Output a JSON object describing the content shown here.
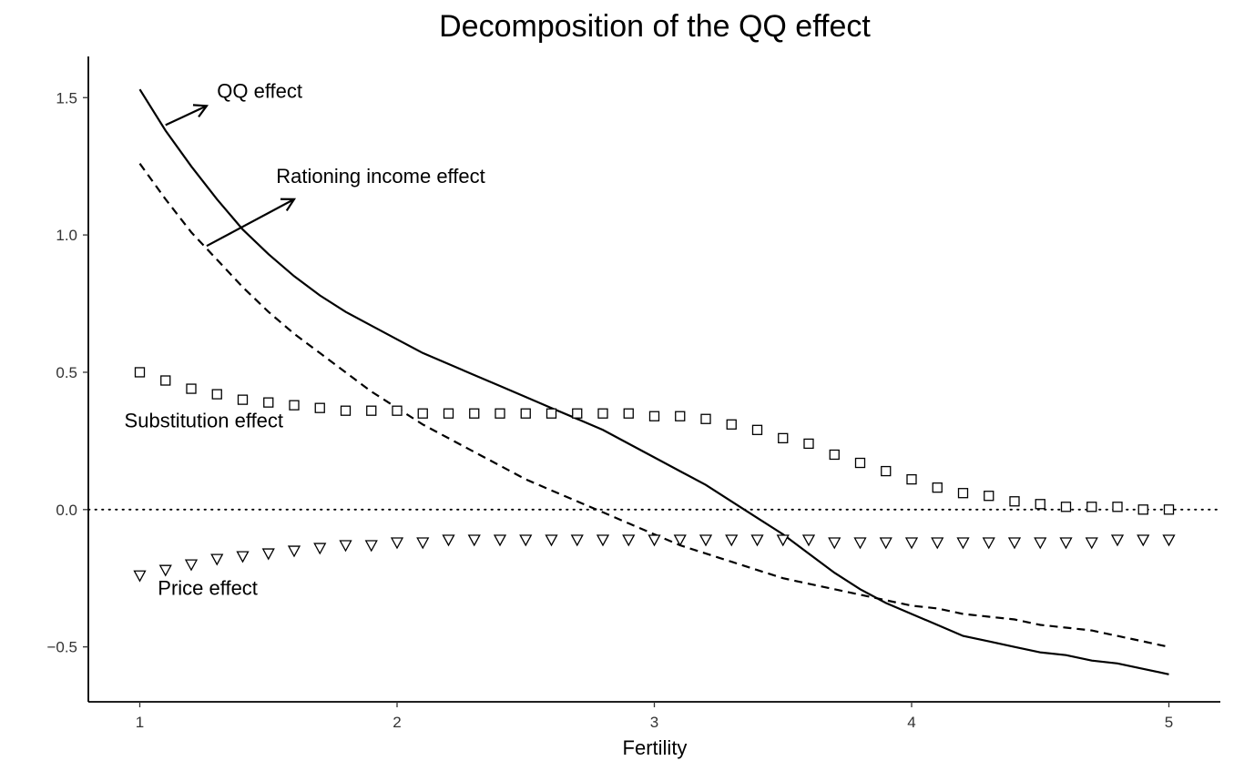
{
  "chart_data": {
    "type": "line",
    "title": "Decomposition of the QQ effect",
    "xlabel": "Fertility",
    "ylabel": "",
    "xlim": [
      0.8,
      5.2
    ],
    "ylim": [
      -0.7,
      1.65
    ],
    "x_ticks": [
      1,
      2,
      3,
      4,
      5
    ],
    "x_tick_labels": [
      "1",
      "2",
      "3",
      "4",
      "5"
    ],
    "y_ticks": [
      1.5,
      1.0,
      0.5,
      0.0,
      -0.5
    ],
    "y_tick_labels": [
      "1.5",
      "1.0",
      "0.5",
      "0.0",
      "−0.5"
    ],
    "grid": false,
    "reference_line": {
      "y": 0,
      "style": "dotted"
    },
    "series": [
      {
        "name": "QQ effect",
        "style": "solid-line",
        "x": [
          1.0,
          1.1,
          1.2,
          1.3,
          1.4,
          1.5,
          1.6,
          1.7,
          1.8,
          1.9,
          2.0,
          2.1,
          2.2,
          2.3,
          2.4,
          2.5,
          2.6,
          2.7,
          2.8,
          2.9,
          3.0,
          3.1,
          3.2,
          3.3,
          3.4,
          3.5,
          3.6,
          3.7,
          3.8,
          3.9,
          4.0,
          4.1,
          4.2,
          4.3,
          4.4,
          4.5,
          4.6,
          4.7,
          4.8,
          4.9,
          5.0
        ],
        "values": [
          1.53,
          1.38,
          1.25,
          1.13,
          1.02,
          0.93,
          0.85,
          0.78,
          0.72,
          0.67,
          0.62,
          0.57,
          0.53,
          0.49,
          0.45,
          0.41,
          0.37,
          0.33,
          0.29,
          0.24,
          0.19,
          0.14,
          0.09,
          0.03,
          -0.03,
          -0.09,
          -0.16,
          -0.23,
          -0.29,
          -0.34,
          -0.38,
          -0.42,
          -0.46,
          -0.48,
          -0.5,
          -0.52,
          -0.53,
          -0.55,
          -0.56,
          -0.58,
          -0.6
        ]
      },
      {
        "name": "Rationing income effect",
        "style": "dashed-line",
        "x": [
          1.0,
          1.1,
          1.2,
          1.3,
          1.4,
          1.5,
          1.6,
          1.7,
          1.8,
          1.9,
          2.0,
          2.1,
          2.2,
          2.3,
          2.4,
          2.5,
          2.6,
          2.7,
          2.8,
          2.9,
          3.0,
          3.1,
          3.2,
          3.3,
          3.4,
          3.5,
          3.6,
          3.7,
          3.8,
          3.9,
          4.0,
          4.1,
          4.2,
          4.3,
          4.4,
          4.5,
          4.6,
          4.7,
          4.8,
          4.9,
          5.0
        ],
        "values": [
          1.26,
          1.13,
          1.01,
          0.91,
          0.81,
          0.72,
          0.64,
          0.57,
          0.5,
          0.43,
          0.37,
          0.31,
          0.26,
          0.21,
          0.16,
          0.11,
          0.07,
          0.03,
          -0.01,
          -0.05,
          -0.09,
          -0.13,
          -0.16,
          -0.19,
          -0.22,
          -0.25,
          -0.27,
          -0.29,
          -0.31,
          -0.33,
          -0.35,
          -0.36,
          -0.38,
          -0.39,
          -0.4,
          -0.42,
          -0.43,
          -0.44,
          -0.46,
          -0.48,
          -0.5
        ]
      },
      {
        "name": "Substitution effect",
        "style": "square-markers",
        "x": [
          1.0,
          1.1,
          1.2,
          1.3,
          1.4,
          1.5,
          1.6,
          1.7,
          1.8,
          1.9,
          2.0,
          2.1,
          2.2,
          2.3,
          2.4,
          2.5,
          2.6,
          2.7,
          2.8,
          2.9,
          3.0,
          3.1,
          3.2,
          3.3,
          3.4,
          3.5,
          3.6,
          3.7,
          3.8,
          3.9,
          4.0,
          4.1,
          4.2,
          4.3,
          4.4,
          4.5,
          4.6,
          4.7,
          4.8,
          4.9,
          5.0
        ],
        "values": [
          0.5,
          0.47,
          0.44,
          0.42,
          0.4,
          0.39,
          0.38,
          0.37,
          0.36,
          0.36,
          0.36,
          0.35,
          0.35,
          0.35,
          0.35,
          0.35,
          0.35,
          0.35,
          0.35,
          0.35,
          0.34,
          0.34,
          0.33,
          0.31,
          0.29,
          0.26,
          0.24,
          0.2,
          0.17,
          0.14,
          0.11,
          0.08,
          0.06,
          0.05,
          0.03,
          0.02,
          0.01,
          0.01,
          0.01,
          0.0,
          0.0
        ]
      },
      {
        "name": "Price effect",
        "style": "triangle-down-markers",
        "x": [
          1.0,
          1.1,
          1.2,
          1.3,
          1.4,
          1.5,
          1.6,
          1.7,
          1.8,
          1.9,
          2.0,
          2.1,
          2.2,
          2.3,
          2.4,
          2.5,
          2.6,
          2.7,
          2.8,
          2.9,
          3.0,
          3.1,
          3.2,
          3.3,
          3.4,
          3.5,
          3.6,
          3.7,
          3.8,
          3.9,
          4.0,
          4.1,
          4.2,
          4.3,
          4.4,
          4.5,
          4.6,
          4.7,
          4.8,
          4.9,
          5.0
        ],
        "values": [
          -0.24,
          -0.22,
          -0.2,
          -0.18,
          -0.17,
          -0.16,
          -0.15,
          -0.14,
          -0.13,
          -0.13,
          -0.12,
          -0.12,
          -0.11,
          -0.11,
          -0.11,
          -0.11,
          -0.11,
          -0.11,
          -0.11,
          -0.11,
          -0.11,
          -0.11,
          -0.11,
          -0.11,
          -0.11,
          -0.11,
          -0.11,
          -0.12,
          -0.12,
          -0.12,
          -0.12,
          -0.12,
          -0.12,
          -0.12,
          -0.12,
          -0.12,
          -0.12,
          -0.12,
          -0.11,
          -0.11,
          -0.11
        ]
      }
    ],
    "annotations": [
      {
        "id": "qq",
        "text": "QQ effect",
        "x": 1.3,
        "y": 1.5,
        "arrow": true,
        "arrow_from": [
          1.1,
          1.4
        ],
        "arrow_to": [
          1.26,
          1.47
        ]
      },
      {
        "id": "rationing",
        "text": "Rationing income effect",
        "x": 1.53,
        "y": 1.19,
        "arrow": true,
        "arrow_from": [
          1.26,
          0.96
        ],
        "arrow_to": [
          1.6,
          1.13
        ]
      },
      {
        "id": "substitution",
        "text": "Substitution effect",
        "x": 0.94,
        "y": 0.3,
        "arrow": false
      },
      {
        "id": "price",
        "text": "Price effect",
        "x": 1.07,
        "y": -0.31,
        "arrow": false
      }
    ]
  }
}
